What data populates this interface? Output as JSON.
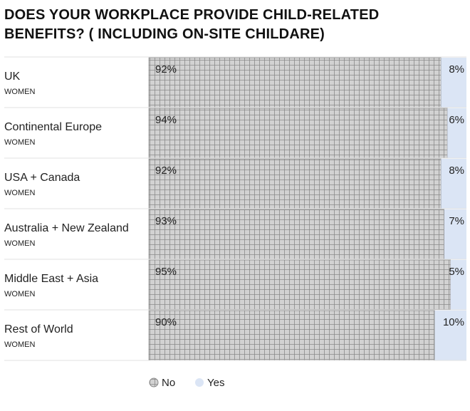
{
  "chart_data": {
    "type": "stacked-bar-horizontal",
    "title": "DOES YOUR WORKPLACE PROVIDE CHILD-RELATED BENEFITS? ( INCLUDING ON-SITE CHILDARE)",
    "categories": [
      "UK",
      "Continental Europe",
      "USA + Canada",
      "Australia + New Zealand",
      "Middle East + Asia",
      "Rest of World"
    ],
    "category_sublabels": [
      "WOMEN",
      "WOMEN",
      "WOMEN",
      "WOMEN",
      "WOMEN",
      "WOMEN"
    ],
    "xlim": [
      0,
      100
    ],
    "series": [
      {
        "name": "No",
        "color": "#cfcfcf",
        "values": [
          92,
          94,
          92,
          93,
          95,
          90
        ],
        "value_labels": [
          "92%",
          "94%",
          "92%",
          "93%",
          "95%",
          "90%"
        ]
      },
      {
        "name": "Yes",
        "color": "#dbe5f5",
        "values": [
          8,
          6,
          8,
          7,
          5,
          10
        ],
        "value_labels": [
          "8%",
          "6%",
          "8%",
          "7%",
          "5%",
          "10%"
        ]
      }
    ]
  }
}
